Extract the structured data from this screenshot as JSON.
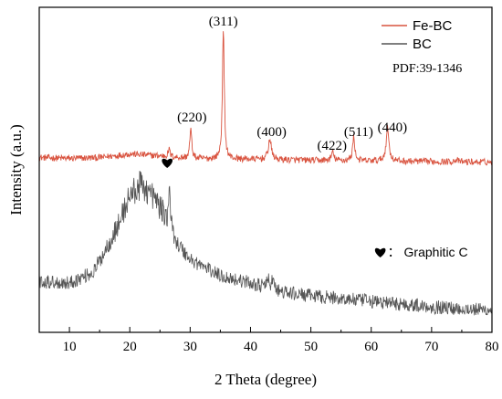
{
  "chart_data": {
    "type": "line",
    "xlabel": "2 Theta (degree)",
    "ylabel": "Intensity (a.u.)",
    "xlim": [
      5,
      80
    ],
    "xticks": [
      10,
      20,
      30,
      40,
      50,
      60,
      70,
      80
    ],
    "y_tick_labels": false,
    "legend": {
      "position": "top-right",
      "entries": [
        {
          "name": "Fe-BC",
          "color": "#d9533f"
        },
        {
          "name": "BC",
          "color": "#555555"
        }
      ],
      "note": "PDF:39-1346"
    },
    "series": [
      {
        "name": "Fe-BC",
        "color": "#d9533f",
        "baseline": [
          [
            5,
            0.28
          ],
          [
            10,
            0.22
          ],
          [
            15,
            0.27
          ],
          [
            20,
            0.47
          ],
          [
            25,
            0.36
          ],
          [
            30,
            0.2
          ],
          [
            40,
            0.18
          ],
          [
            50,
            0.12
          ],
          [
            60,
            0.08
          ],
          [
            70,
            0.05
          ],
          [
            80,
            0.02
          ]
        ],
        "peaks": [
          {
            "x": 26.5,
            "h": 0.4,
            "w": 0.2
          },
          {
            "x": 30.1,
            "h": 1.6,
            "w": 0.2
          },
          {
            "x": 35.5,
            "h": 7.1,
            "w": 0.18
          },
          {
            "x": 43.2,
            "h": 1.1,
            "w": 0.3
          },
          {
            "x": 53.6,
            "h": 0.45,
            "w": 0.25
          },
          {
            "x": 57.1,
            "h": 1.3,
            "w": 0.22
          },
          {
            "x": 62.7,
            "h": 1.8,
            "w": 0.28
          },
          {
            "x": 74.0,
            "h": 0.12,
            "w": 0.3
          }
        ]
      },
      {
        "name": "BC",
        "color": "#555555",
        "baseline": [
          [
            5,
            -6.5
          ],
          [
            10,
            -6.6
          ],
          [
            14,
            -6.0
          ],
          [
            18,
            -3.5
          ],
          [
            20,
            -1.8
          ],
          [
            22,
            -1.2
          ],
          [
            24,
            -1.9
          ],
          [
            26,
            -3.0
          ],
          [
            28,
            -4.5
          ],
          [
            30,
            -5.3
          ],
          [
            35,
            -6.2
          ],
          [
            40,
            -6.6
          ],
          [
            45,
            -7.1
          ],
          [
            50,
            -7.3
          ],
          [
            60,
            -7.6
          ],
          [
            70,
            -7.9
          ],
          [
            80,
            -8.1
          ]
        ],
        "peaks": [
          {
            "x": 26.6,
            "h": 2.5,
            "w": 0.12
          },
          {
            "x": 42.9,
            "h": 0.5,
            "w": 0.25
          },
          {
            "x": 43.7,
            "h": 0.6,
            "w": 0.2
          }
        ]
      }
    ],
    "peak_labels": [
      {
        "text": "(220)",
        "x": 30.3,
        "y": 2.25
      },
      {
        "text": "(311)",
        "x": 35.5,
        "y": 7.5
      },
      {
        "text": "(400)",
        "x": 43.5,
        "y": 1.45
      },
      {
        "text": "(422)",
        "x": 53.5,
        "y": 0.7
      },
      {
        "text": "(511)",
        "x": 57.9,
        "y": 1.45
      },
      {
        "text": "(440)",
        "x": 63.5,
        "y": 1.7
      }
    ],
    "annotations": [
      {
        "marker": "heart",
        "x": 26.2,
        "y": 0.0
      },
      {
        "marker": "heart",
        "text": "： Graphitic C",
        "x": 61.5,
        "y": -4.9
      }
    ],
    "ylim": [
      -9.3,
      8.5
    ]
  }
}
